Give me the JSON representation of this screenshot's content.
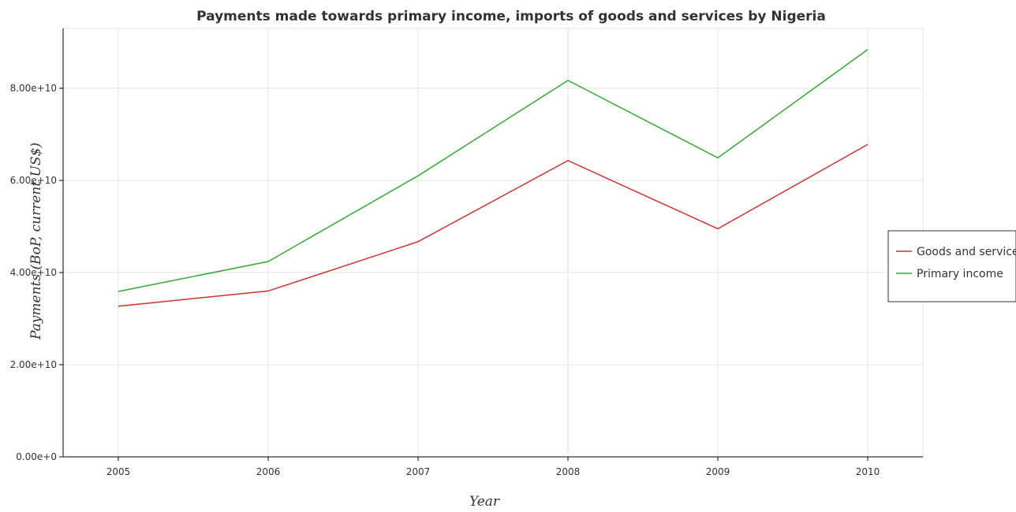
{
  "chart_data": {
    "type": "line",
    "title": "Payments made towards primary income, imports of goods and services by Nigeria",
    "xlabel": "Year",
    "ylabel": "Payments (BoP, current US$)",
    "categories": [
      "2005",
      "2006",
      "2007",
      "2008",
      "2009",
      "2010"
    ],
    "y_ticks": [
      0,
      20000000000,
      40000000000,
      60000000000,
      80000000000
    ],
    "y_tick_labels": [
      "0.00e+0",
      "2.00e+10",
      "4.00e+10",
      "6.00e+10",
      "8.00e+10"
    ],
    "ylim": [
      0,
      93000000000
    ],
    "grid": true,
    "legend_position": "right",
    "series": [
      {
        "name": "Goods and services",
        "color": "#cc3333",
        "values": [
          32700000000,
          36000000000,
          46700000000,
          64300000000,
          49500000000,
          67800000000
        ]
      },
      {
        "name": "Primary income",
        "color": "#33aa33",
        "values": [
          35900000000,
          42400000000,
          61000000000,
          81700000000,
          64900000000,
          88400000000
        ]
      }
    ]
  }
}
